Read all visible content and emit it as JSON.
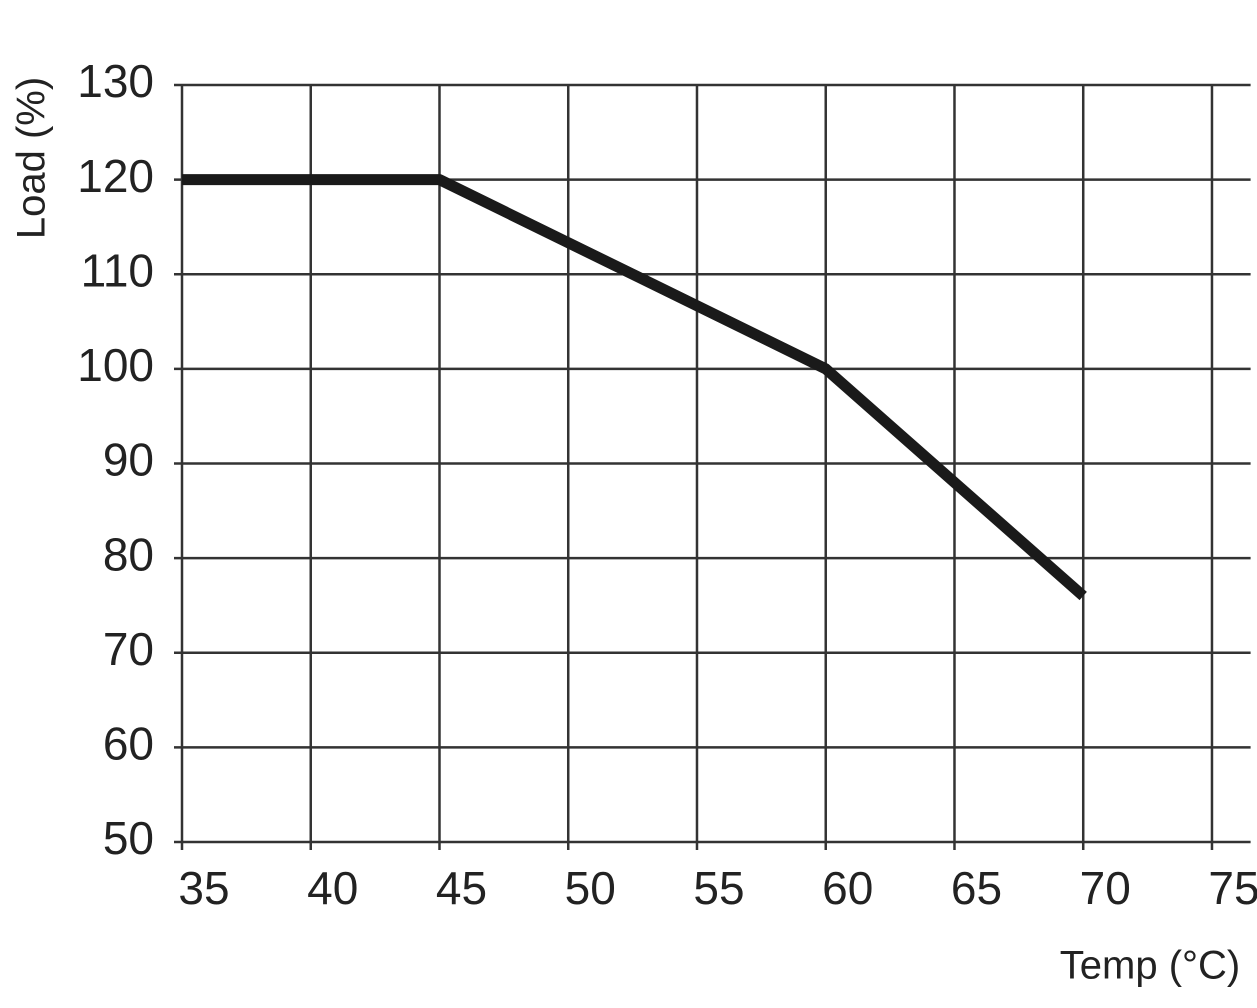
{
  "chart_data": {
    "type": "line",
    "x_label": "Temp (°C)",
    "y_label": "Load (%)",
    "x": [
      35,
      45,
      60,
      70
    ],
    "series": [
      {
        "name": "Load",
        "color": "#1a1a1a",
        "values": [
          120,
          120,
          100,
          76
        ]
      }
    ],
    "xlim": [
      35,
      76.5
    ],
    "xticks": [
      35,
      40,
      45,
      50,
      55,
      60,
      65,
      70,
      75
    ],
    "ylim": [
      50,
      130
    ],
    "yticks": [
      50,
      60,
      70,
      80,
      90,
      100,
      110,
      120,
      130
    ],
    "grid": true
  }
}
